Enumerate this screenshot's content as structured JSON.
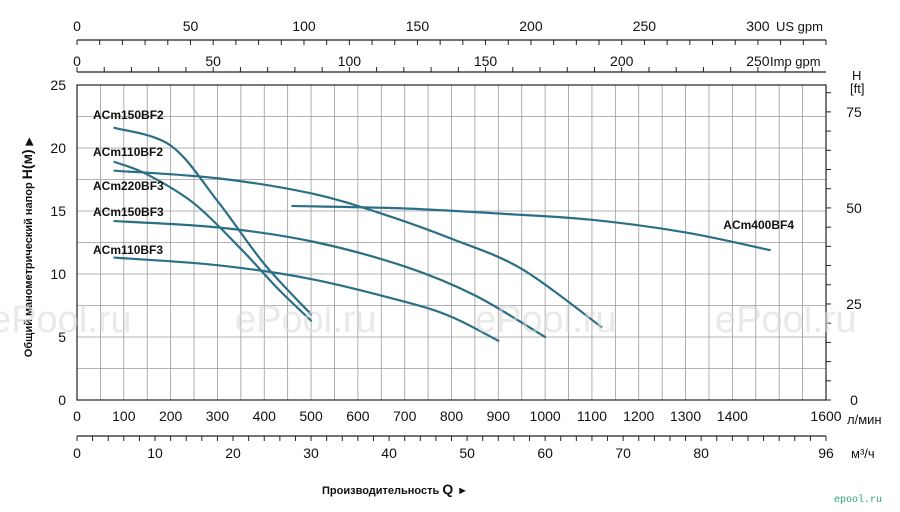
{
  "chart_data": {
    "type": "line",
    "x_axis": {
      "unit": "л/мин",
      "range": [
        0,
        1600
      ],
      "ticks": [
        "0",
        "100",
        "200",
        "300",
        "400",
        "500",
        "600",
        "700",
        "800",
        "900",
        "1000",
        "1100",
        "1200",
        "1300",
        "1400",
        "1600"
      ]
    },
    "top_axes": [
      {
        "unit": "US gpm",
        "range": [
          0,
          330
        ],
        "ticks": [
          "0",
          "50",
          "100",
          "150",
          "200",
          "250",
          "300"
        ]
      },
      {
        "unit": "Imp gpm",
        "range": [
          0,
          275
        ],
        "ticks": [
          "0",
          "50",
          "100",
          "150",
          "200",
          "250"
        ]
      }
    ],
    "bottom_axis_m3h": {
      "unit": "м³/ч",
      "range": [
        0,
        96
      ],
      "ticks": [
        "0",
        "10",
        "20",
        "30",
        "40",
        "50",
        "60",
        "70",
        "80",
        "96"
      ]
    },
    "y_axis": {
      "label": "Общий манометрический напор",
      "symbol": "H(м)",
      "arrow": "▶",
      "range": [
        0,
        25
      ],
      "ticks": [
        "0",
        "5",
        "10",
        "15",
        "20",
        "25"
      ]
    },
    "y_axis_ft": {
      "unit_line1": "H",
      "unit_line2": "[ft]",
      "range": [
        0,
        82
      ],
      "ticks": [
        "0",
        "25",
        "50",
        "75"
      ]
    },
    "x_title": "Производительность",
    "x_symbol": "Q",
    "x_arrow": "►",
    "grid": true,
    "series": [
      {
        "name": "ACm150BF2",
        "color": "#2b6f87",
        "x": [
          80,
          200,
          300,
          400,
          500
        ],
        "y": [
          21.6,
          20.2,
          15.8,
          10.8,
          6.8
        ]
      },
      {
        "name": "ACm110BF2",
        "color": "#2b6f87",
        "x": [
          80,
          150,
          250,
          350,
          430,
          500
        ],
        "y": [
          18.9,
          17.9,
          15.6,
          12.0,
          8.8,
          6.3
        ]
      },
      {
        "name": "ACm220BF3",
        "color": "#2b6f87",
        "x": [
          80,
          300,
          500,
          650,
          800,
          950,
          1120
        ],
        "y": [
          18.2,
          17.6,
          16.4,
          14.8,
          12.8,
          10.4,
          5.8
        ]
      },
      {
        "name": "ACm150BF3",
        "color": "#2b6f87",
        "x": [
          80,
          300,
          500,
          700,
          850,
          1000
        ],
        "y": [
          14.2,
          13.7,
          12.6,
          10.6,
          8.3,
          5.0
        ]
      },
      {
        "name": "ACm110BF3",
        "color": "#2b6f87",
        "x": [
          80,
          300,
          500,
          700,
          800,
          900
        ],
        "y": [
          11.3,
          10.7,
          9.6,
          7.8,
          6.6,
          4.7
        ]
      },
      {
        "name": "ACm400BF4",
        "color": "#2b6f87",
        "x": [
          460,
          700,
          900,
          1100,
          1300,
          1480
        ],
        "y": [
          15.4,
          15.2,
          14.8,
          14.3,
          13.3,
          11.9
        ]
      }
    ]
  },
  "watermark": [
    "ePool.ru",
    "ePool.ru",
    "ePool.ru",
    "ePool.ru"
  ],
  "brand": "epool.ru"
}
